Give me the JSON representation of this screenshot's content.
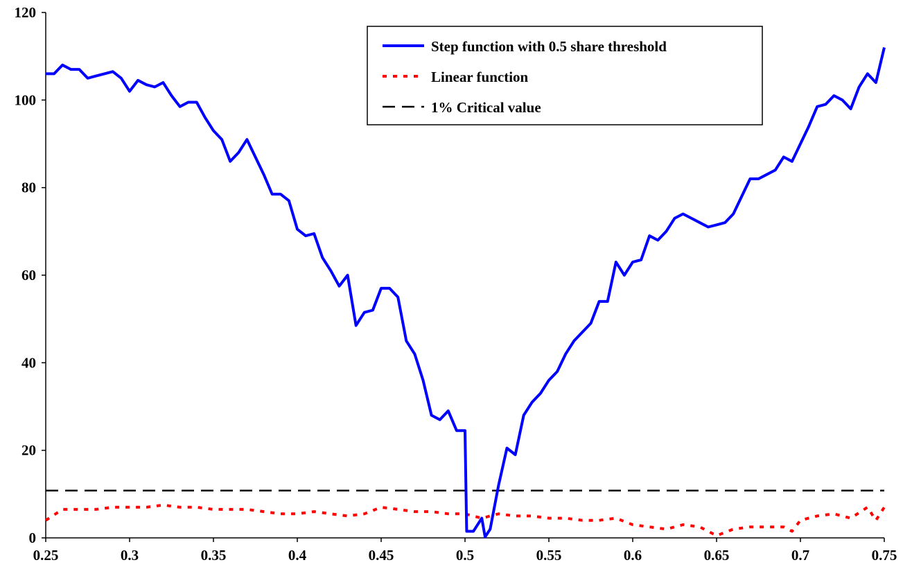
{
  "chart_data": {
    "type": "line",
    "xlim": [
      0.25,
      0.75
    ],
    "ylim": [
      0,
      120
    ],
    "xticks": [
      0.25,
      0.3,
      0.35,
      0.4,
      0.45,
      0.5,
      0.55,
      0.6,
      0.65,
      0.7,
      0.75
    ],
    "yticks": [
      0,
      20,
      40,
      60,
      80,
      100,
      120
    ],
    "legend": "top-right",
    "series": [
      {
        "name": "Step function with 0.5 share threshold",
        "color": "#0000ff",
        "style": "solid",
        "x": [
          0.25,
          0.255,
          0.26,
          0.265,
          0.27,
          0.275,
          0.28,
          0.285,
          0.29,
          0.295,
          0.3,
          0.305,
          0.31,
          0.315,
          0.32,
          0.325,
          0.33,
          0.335,
          0.34,
          0.345,
          0.35,
          0.355,
          0.36,
          0.365,
          0.37,
          0.375,
          0.38,
          0.385,
          0.39,
          0.395,
          0.4,
          0.405,
          0.41,
          0.415,
          0.42,
          0.425,
          0.43,
          0.435,
          0.44,
          0.445,
          0.45,
          0.455,
          0.46,
          0.465,
          0.47,
          0.475,
          0.48,
          0.485,
          0.49,
          0.495,
          0.5,
          0.501,
          0.505,
          0.51,
          0.512,
          0.515,
          0.52,
          0.525,
          0.53,
          0.535,
          0.54,
          0.545,
          0.55,
          0.555,
          0.56,
          0.565,
          0.57,
          0.575,
          0.58,
          0.585,
          0.59,
          0.595,
          0.6,
          0.605,
          0.61,
          0.615,
          0.62,
          0.625,
          0.63,
          0.635,
          0.64,
          0.645,
          0.65,
          0.655,
          0.66,
          0.665,
          0.67,
          0.675,
          0.68,
          0.685,
          0.69,
          0.695,
          0.7,
          0.705,
          0.71,
          0.715,
          0.72,
          0.725,
          0.73,
          0.735,
          0.74,
          0.745,
          0.75
        ],
        "values": [
          106,
          106,
          108,
          107,
          107,
          105,
          105.5,
          106,
          106.5,
          105,
          102,
          104.5,
          103.5,
          103,
          104,
          101,
          98.5,
          99.5,
          99.5,
          96,
          93,
          91,
          86,
          88,
          91,
          87,
          83,
          78.5,
          78.5,
          77,
          70.5,
          69,
          69.5,
          64,
          61,
          57.5,
          60,
          48.5,
          51.5,
          52,
          57,
          57,
          55,
          45,
          42,
          36,
          28,
          27,
          29,
          24.5,
          24.5,
          1.5,
          1.5,
          4.5,
          0.2,
          2,
          12,
          20.5,
          19,
          28,
          31,
          33,
          36,
          38,
          42,
          45,
          47,
          49,
          54,
          54,
          63,
          60,
          63,
          63.5,
          69,
          68,
          70,
          73,
          74,
          73,
          72,
          71,
          71.5,
          72,
          74,
          78,
          82,
          82,
          83,
          84,
          87,
          86,
          90,
          94,
          98.5,
          99,
          101,
          100,
          98,
          103,
          106,
          104,
          112
        ]
      },
      {
        "name": "Linear function",
        "color": "#ff0000",
        "style": "dotted",
        "x": [
          0.25,
          0.26,
          0.27,
          0.28,
          0.29,
          0.3,
          0.31,
          0.32,
          0.33,
          0.34,
          0.35,
          0.36,
          0.37,
          0.38,
          0.39,
          0.4,
          0.41,
          0.42,
          0.43,
          0.44,
          0.45,
          0.46,
          0.47,
          0.48,
          0.49,
          0.5,
          0.51,
          0.52,
          0.53,
          0.54,
          0.55,
          0.56,
          0.57,
          0.58,
          0.59,
          0.6,
          0.61,
          0.62,
          0.63,
          0.64,
          0.65,
          0.66,
          0.67,
          0.68,
          0.69,
          0.695,
          0.7,
          0.71,
          0.72,
          0.73,
          0.74,
          0.745,
          0.75
        ],
        "values": [
          4,
          6.5,
          6.5,
          6.5,
          7,
          7,
          7,
          7.5,
          7,
          7,
          6.5,
          6.5,
          6.5,
          6,
          5.5,
          5.5,
          6,
          5.5,
          5,
          5.5,
          7,
          6.5,
          6,
          6,
          5.5,
          5.5,
          4.5,
          5.5,
          5,
          5,
          4.5,
          4.5,
          4,
          4,
          4.5,
          3,
          2.5,
          2,
          3,
          2.5,
          0.5,
          2,
          2.5,
          2.5,
          2.5,
          1.5,
          4,
          5,
          5.5,
          4.5,
          7,
          4,
          7
        ]
      },
      {
        "name": "1% Critical value",
        "color": "#000000",
        "style": "dashed",
        "x": [
          0.25,
          0.75
        ],
        "values": [
          10.8,
          10.8
        ]
      }
    ]
  }
}
